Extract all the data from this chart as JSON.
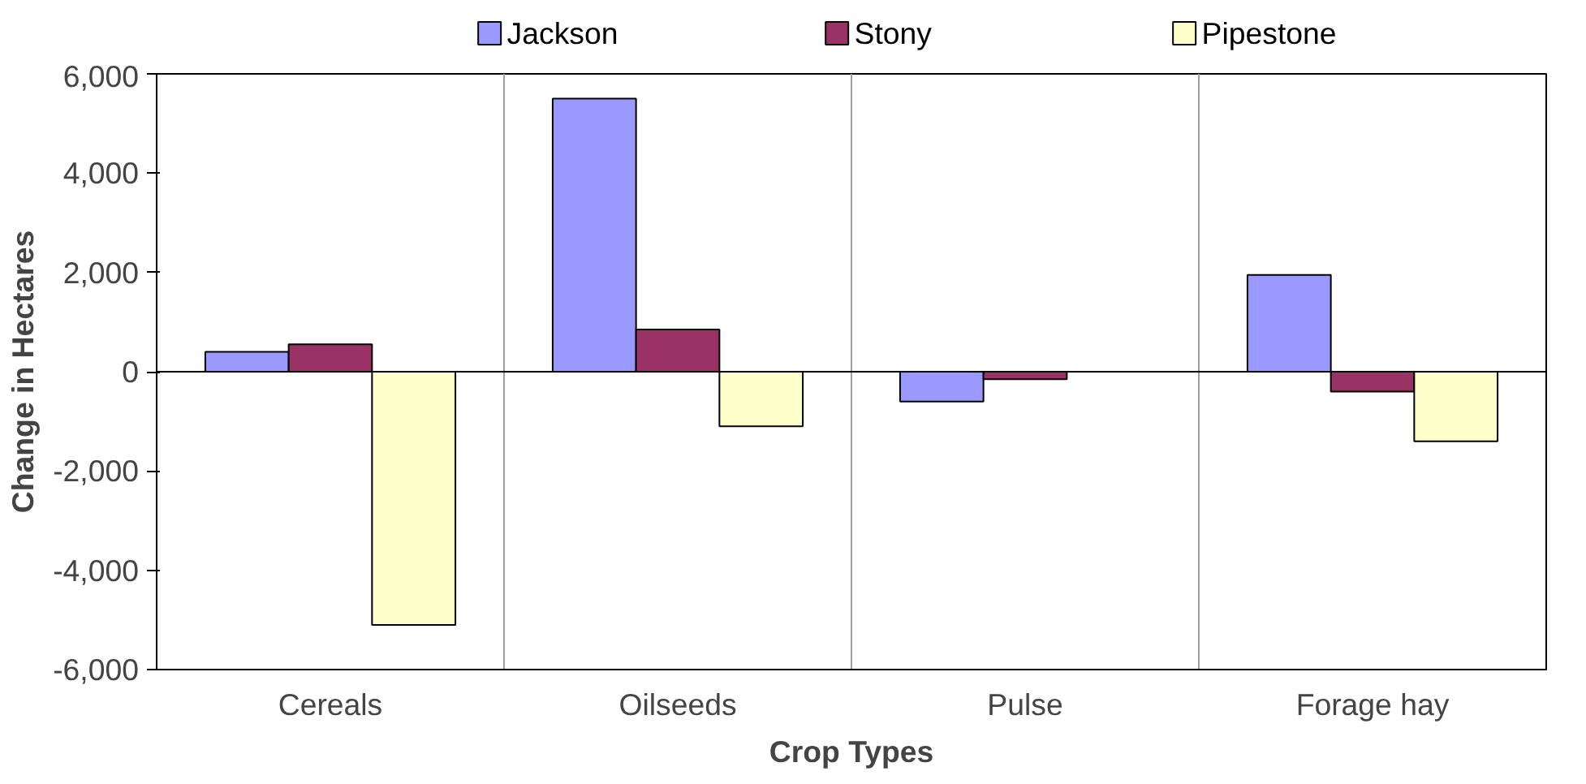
{
  "chart_data": {
    "type": "bar",
    "xlabel": "Crop Types",
    "ylabel": "Change in Hectares",
    "categories": [
      "Cereals",
      "Oilseeds",
      "Pulse",
      "Forage hay"
    ],
    "series": [
      {
        "name": "Jackson",
        "color": "#9999ff",
        "values": [
          400,
          5500,
          -600,
          1950
        ]
      },
      {
        "name": "Stony",
        "color": "#993366",
        "values": [
          550,
          850,
          -150,
          -400
        ]
      },
      {
        "name": "Pipestone",
        "color": "#ffffcc",
        "values": [
          -5100,
          -1100,
          null,
          -1400
        ]
      }
    ],
    "ylim": [
      -6000,
      6000
    ],
    "yticks": [
      {
        "value": -6000,
        "label": "-6,000"
      },
      {
        "value": -4000,
        "label": "-4,000"
      },
      {
        "value": -2000,
        "label": "-2,000"
      },
      0,
      {
        "value": 2000,
        "label": "2,000"
      },
      {
        "value": 4000,
        "label": "4,000"
      },
      {
        "value": 6000,
        "label": "6,000"
      }
    ],
    "grid": "x",
    "legend": "top"
  }
}
